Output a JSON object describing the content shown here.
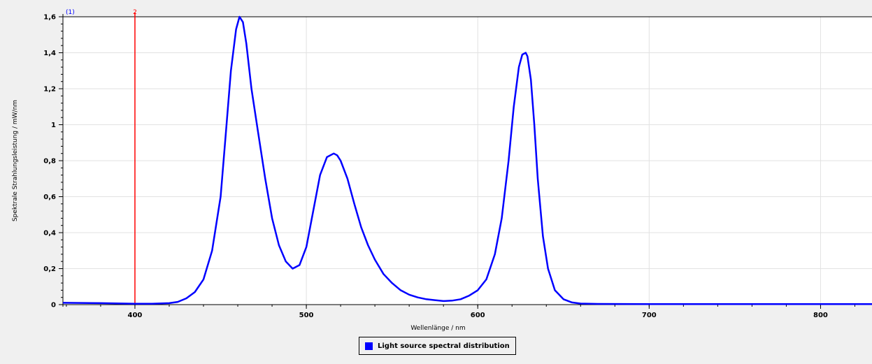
{
  "chart_data": {
    "type": "line",
    "xlabel": "Wellenlänge / nm",
    "ylabel": "Spektrale Strahlungsleistung / mW/nm",
    "xlim": [
      358,
      830
    ],
    "ylim": [
      0,
      1.6
    ],
    "x_ticks": [
      400,
      500,
      600,
      700,
      800
    ],
    "y_ticks": [
      0,
      0.2,
      0.4,
      0.6,
      0.8,
      1,
      1.2,
      1.4,
      1.6
    ],
    "y_tick_labels": [
      "0",
      "0,2",
      "0,4",
      "0,6",
      "0,8",
      "1",
      "1,2",
      "1,4",
      "1,6"
    ],
    "grid": true,
    "legend_position": "bottom-center",
    "cursor_markers": [
      {
        "label": "(1)",
        "x": 358,
        "color": "#0000ff"
      },
      {
        "label": "2",
        "x": 400,
        "color": "#ff0000"
      }
    ],
    "series": [
      {
        "name": "Light source spectral distribution",
        "color": "#0000ff",
        "x": [
          358,
          380,
          400,
          410,
          420,
          425,
          430,
          435,
          440,
          445,
          450,
          453,
          456,
          459,
          461,
          463,
          465,
          468,
          472,
          476,
          480,
          484,
          488,
          492,
          496,
          500,
          504,
          508,
          512,
          516,
          518,
          520,
          524,
          528,
          532,
          536,
          540,
          545,
          550,
          555,
          560,
          565,
          570,
          575,
          580,
          585,
          590,
          595,
          600,
          605,
          610,
          614,
          618,
          621,
          624,
          626,
          628,
          629,
          631,
          633,
          635,
          638,
          641,
          645,
          650,
          655,
          660,
          670,
          700,
          750,
          800,
          830
        ],
        "y": [
          0.01,
          0.008,
          0.005,
          0.005,
          0.008,
          0.015,
          0.035,
          0.07,
          0.14,
          0.3,
          0.6,
          0.95,
          1.3,
          1.53,
          1.6,
          1.57,
          1.45,
          1.2,
          0.95,
          0.7,
          0.48,
          0.33,
          0.24,
          0.2,
          0.22,
          0.32,
          0.52,
          0.72,
          0.82,
          0.84,
          0.83,
          0.8,
          0.7,
          0.56,
          0.43,
          0.33,
          0.25,
          0.17,
          0.12,
          0.08,
          0.055,
          0.04,
          0.03,
          0.025,
          0.02,
          0.022,
          0.03,
          0.05,
          0.08,
          0.14,
          0.28,
          0.48,
          0.8,
          1.1,
          1.32,
          1.39,
          1.4,
          1.38,
          1.25,
          1.0,
          0.7,
          0.38,
          0.2,
          0.08,
          0.03,
          0.012,
          0.006,
          0.004,
          0.003,
          0.003,
          0.003,
          0.003
        ]
      }
    ]
  }
}
